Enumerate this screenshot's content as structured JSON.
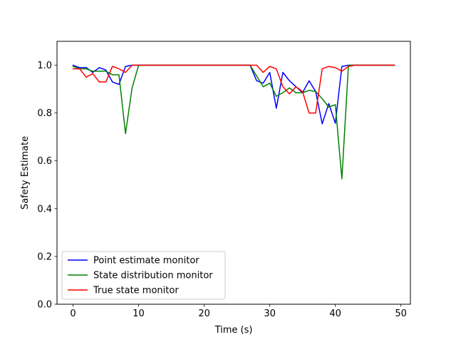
{
  "chart_data": {
    "type": "line",
    "title": "",
    "xlabel": "Time (s)",
    "ylabel": "Safety Estimate",
    "xlim": [
      -2.45,
      51.45
    ],
    "ylim": [
      0.0,
      1.1
    ],
    "xticks": [
      0,
      10,
      20,
      30,
      40,
      50
    ],
    "yticks": [
      0.0,
      0.2,
      0.4,
      0.6,
      0.8,
      1.0
    ],
    "xtick_labels": [
      "0",
      "10",
      "20",
      "30",
      "40",
      "50"
    ],
    "ytick_labels": [
      "0.0",
      "0.2",
      "0.4",
      "0.6",
      "0.8",
      "1.0"
    ],
    "grid": false,
    "legend_position": "lower-left",
    "x": [
      0,
      1,
      2,
      3,
      4,
      5,
      6,
      7,
      8,
      9,
      10,
      11,
      12,
      13,
      14,
      15,
      16,
      17,
      18,
      19,
      20,
      21,
      22,
      23,
      24,
      25,
      26,
      27,
      28,
      29,
      30,
      31,
      32,
      33,
      34,
      35,
      36,
      37,
      38,
      39,
      40,
      41,
      42,
      43,
      44,
      45,
      46,
      47,
      48,
      49
    ],
    "series": [
      {
        "name": "Point estimate monitor",
        "color": "#0000ff",
        "values": [
          1.0,
          0.99,
          0.99,
          0.97,
          0.99,
          0.98,
          0.93,
          0.92,
          0.995,
          1.0,
          1.0,
          1.0,
          1.0,
          1.0,
          1.0,
          1.0,
          1.0,
          1.0,
          1.0,
          1.0,
          1.0,
          1.0,
          1.0,
          1.0,
          1.0,
          1.0,
          1.0,
          1.0,
          0.935,
          0.925,
          0.97,
          0.82,
          0.97,
          0.935,
          0.91,
          0.885,
          0.935,
          0.89,
          0.755,
          0.84,
          0.757,
          0.995,
          1.0,
          1.0,
          1.0,
          1.0,
          1.0,
          1.0,
          1.0,
          1.0
        ]
      },
      {
        "name": "State distribution monitor",
        "color": "#008000",
        "values": [
          0.995,
          0.985,
          0.985,
          0.975,
          0.975,
          0.975,
          0.96,
          0.96,
          0.714,
          0.905,
          1.0,
          1.0,
          1.0,
          1.0,
          1.0,
          1.0,
          1.0,
          1.0,
          1.0,
          1.0,
          1.0,
          1.0,
          1.0,
          1.0,
          1.0,
          1.0,
          1.0,
          1.0,
          0.955,
          0.91,
          0.925,
          0.87,
          0.885,
          0.905,
          0.885,
          0.885,
          0.895,
          0.89,
          0.86,
          0.825,
          0.835,
          0.525,
          1.0,
          1.0,
          1.0,
          1.0,
          1.0,
          1.0,
          1.0,
          1.0
        ]
      },
      {
        "name": "True state monitor",
        "color": "#ff0000",
        "values": [
          0.985,
          0.985,
          0.95,
          0.965,
          0.93,
          0.93,
          0.995,
          0.985,
          0.97,
          1.0,
          1.0,
          1.0,
          1.0,
          1.0,
          1.0,
          1.0,
          1.0,
          1.0,
          1.0,
          1.0,
          1.0,
          1.0,
          1.0,
          1.0,
          1.0,
          1.0,
          1.0,
          1.0,
          1.0,
          0.97,
          0.995,
          0.985,
          0.91,
          0.88,
          0.91,
          0.89,
          0.8,
          0.8,
          0.985,
          0.995,
          0.99,
          0.975,
          0.995,
          1.0,
          1.0,
          1.0,
          1.0,
          1.0,
          1.0,
          1.0
        ]
      }
    ]
  }
}
